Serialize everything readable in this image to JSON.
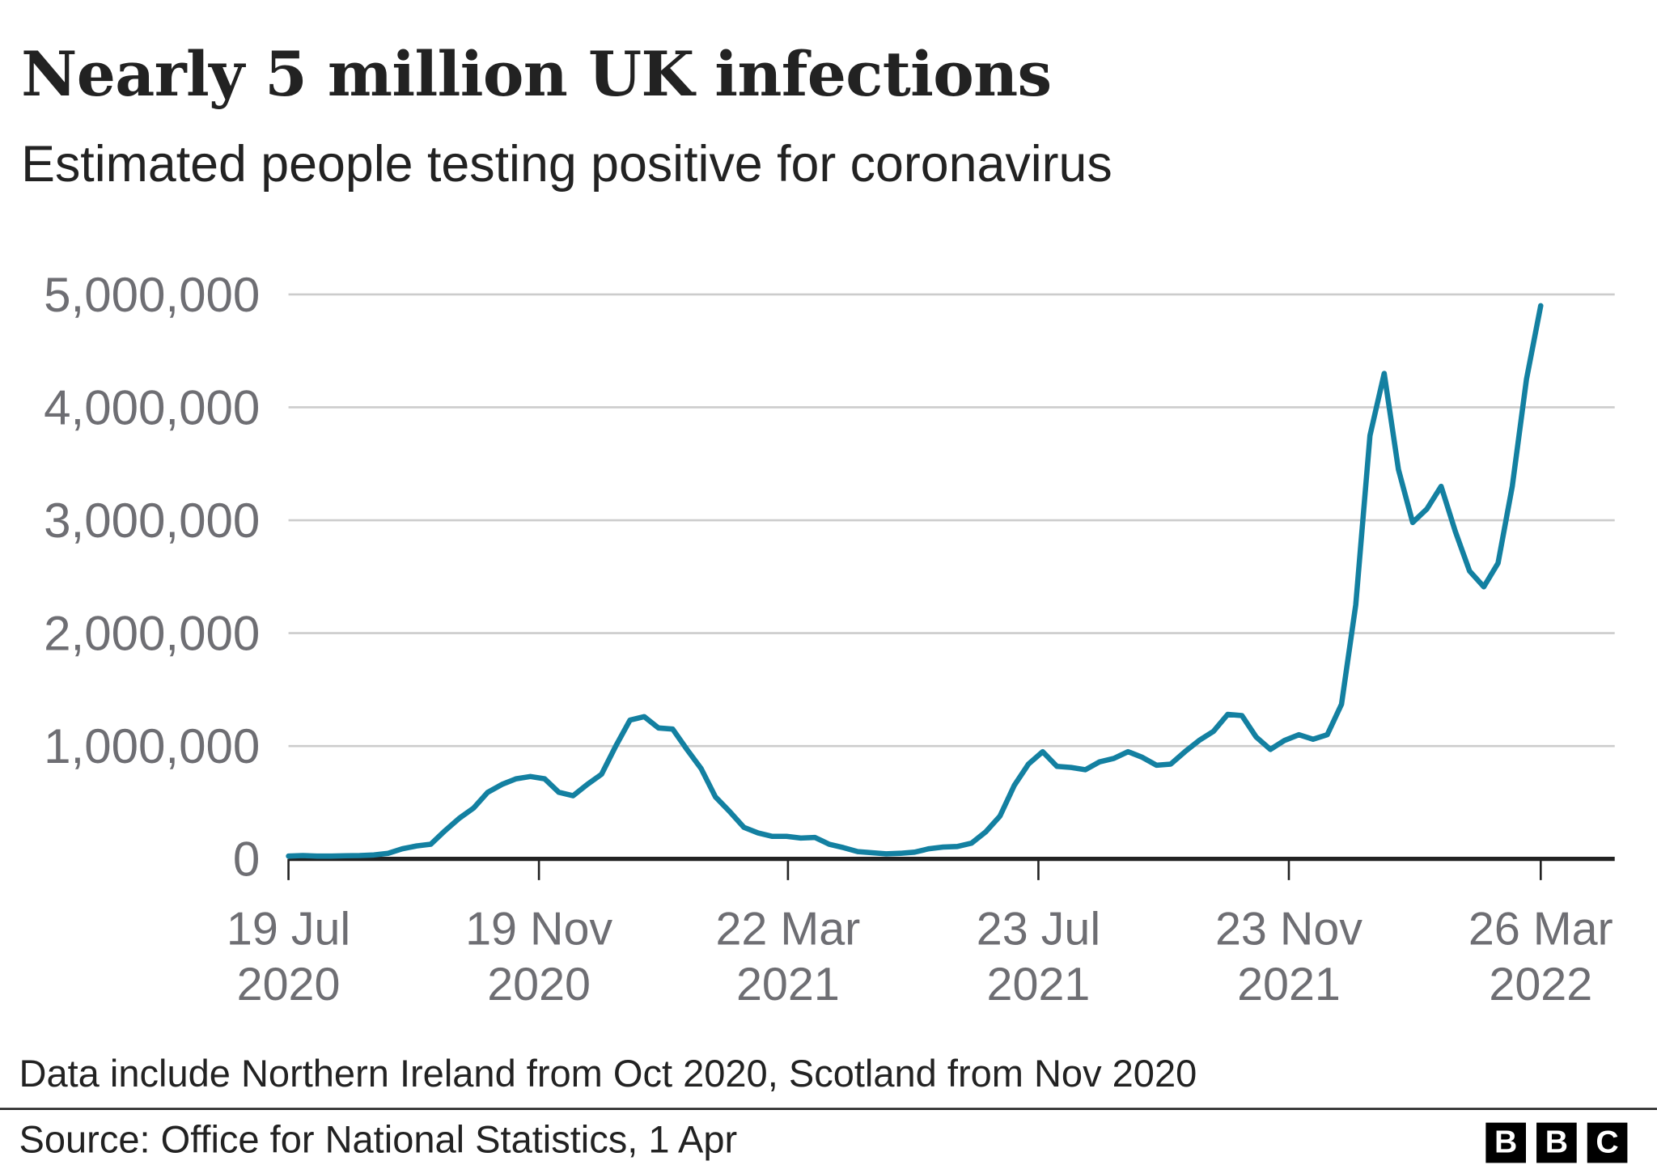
{
  "chart_data": {
    "type": "line",
    "title": "Nearly 5 million UK infections",
    "subtitle": "Estimated people testing positive for coronavirus",
    "xlabel": "",
    "ylabel": "",
    "ylim": [
      0,
      5000000
    ],
    "grid": true,
    "y_ticks": [
      {
        "value": 0,
        "label": "0"
      },
      {
        "value": 1000000,
        "label": "1,000,000"
      },
      {
        "value": 2000000,
        "label": "2,000,000"
      },
      {
        "value": 3000000,
        "label": "3,000,000"
      },
      {
        "value": 4000000,
        "label": "4,000,000"
      },
      {
        "value": 5000000,
        "label": "5,000,000"
      }
    ],
    "x_unit": "weeks since 19 Jul 2020",
    "xlim": [
      0,
      88
    ],
    "x_ticks": [
      {
        "week": 0,
        "line1": "19 Jul",
        "line2": "2020"
      },
      {
        "week": 17.6,
        "line1": "19 Nov",
        "line2": "2020"
      },
      {
        "week": 35.1,
        "line1": "22 Mar",
        "line2": "2021"
      },
      {
        "week": 52.7,
        "line1": "23 Jul",
        "line2": "2021"
      },
      {
        "week": 70.3,
        "line1": "23 Nov",
        "line2": "2021"
      },
      {
        "week": 88,
        "line1": "26 Mar",
        "line2": "2022"
      }
    ],
    "series": [
      {
        "name": "Estimated people testing positive",
        "color": "#1380a1",
        "values": [
          25000,
          30000,
          25000,
          25000,
          28000,
          30000,
          35000,
          50000,
          90000,
          115000,
          130000,
          250000,
          360000,
          450000,
          590000,
          660000,
          710000,
          730000,
          710000,
          590000,
          560000,
          660000,
          750000,
          1000000,
          1230000,
          1260000,
          1160000,
          1150000,
          970000,
          800000,
          550000,
          420000,
          280000,
          230000,
          200000,
          200000,
          185000,
          190000,
          130000,
          100000,
          65000,
          55000,
          45000,
          50000,
          60000,
          90000,
          105000,
          110000,
          140000,
          240000,
          380000,
          650000,
          840000,
          950000,
          820000,
          810000,
          790000,
          860000,
          890000,
          950000,
          900000,
          830000,
          840000,
          950000,
          1050000,
          1130000,
          1280000,
          1270000,
          1080000,
          970000,
          1050000,
          1100000,
          1060000,
          1100000,
          1370000,
          2250000,
          3750000,
          4300000,
          3450000,
          2980000,
          3100000,
          3300000,
          2900000,
          2550000,
          2410000,
          2620000,
          3300000,
          4250000,
          4900000
        ]
      }
    ]
  },
  "footer": {
    "note": "Data include Northern Ireland from Oct 2020, Scotland from Nov 2020",
    "source": "Source: Office for National Statistics, 1 Apr",
    "logo_letters": [
      "B",
      "B",
      "C"
    ]
  }
}
